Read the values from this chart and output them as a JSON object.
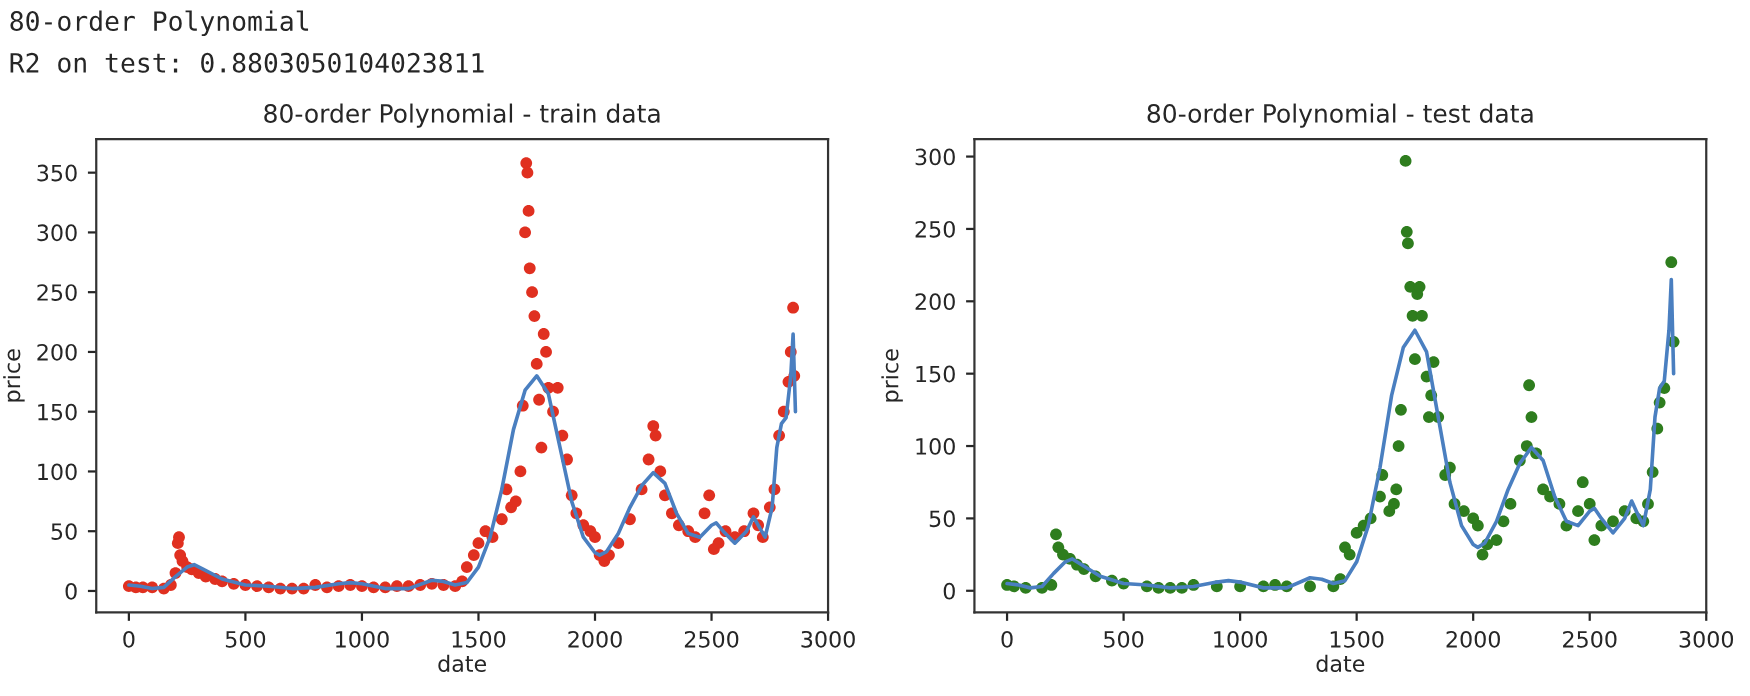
{
  "chart_data": [
    {
      "type": "scatter",
      "title": "80-order Polynomial - train data",
      "xlabel": "date",
      "ylabel": "price",
      "annotations": [
        "80-order Polynomial",
        "R2 on test: 0.8803050104023811"
      ],
      "xlim": [
        -140,
        3000
      ],
      "xticks": [
        0,
        500,
        1000,
        1500,
        2000,
        2500,
        3000
      ],
      "ylim": [
        -18,
        378
      ],
      "yticks": [
        0,
        50,
        100,
        150,
        200,
        250,
        300,
        350
      ],
      "grid": false,
      "legend": false,
      "series": [
        {
          "marker": "circle",
          "color": "#e03020",
          "x": [
            0,
            30,
            60,
            100,
            150,
            180,
            200,
            210,
            215,
            220,
            230,
            250,
            270,
            300,
            330,
            370,
            400,
            450,
            500,
            550,
            600,
            650,
            700,
            750,
            800,
            850,
            900,
            950,
            1000,
            1050,
            1100,
            1150,
            1200,
            1250,
            1300,
            1350,
            1400,
            1430,
            1450,
            1480,
            1500,
            1530,
            1560,
            1600,
            1620,
            1640,
            1660,
            1680,
            1690,
            1700,
            1705,
            1710,
            1715,
            1720,
            1730,
            1740,
            1750,
            1760,
            1770,
            1780,
            1790,
            1800,
            1820,
            1840,
            1860,
            1880,
            1900,
            1920,
            1950,
            1980,
            2000,
            2020,
            2040,
            2060,
            2100,
            2150,
            2200,
            2230,
            2250,
            2260,
            2280,
            2300,
            2330,
            2360,
            2400,
            2430,
            2470,
            2490,
            2510,
            2530,
            2560,
            2600,
            2640,
            2680,
            2700,
            2720,
            2750,
            2770,
            2790,
            2810,
            2830,
            2840,
            2850,
            2855
          ],
          "values": [
            4,
            3,
            3,
            3,
            2,
            5,
            15,
            40,
            45,
            30,
            25,
            20,
            18,
            15,
            12,
            10,
            8,
            6,
            5,
            4,
            3,
            2,
            2,
            2,
            5,
            3,
            4,
            5,
            4,
            3,
            3,
            4,
            4,
            5,
            6,
            5,
            4,
            8,
            20,
            30,
            40,
            50,
            45,
            60,
            85,
            70,
            75,
            100,
            155,
            300,
            358,
            350,
            318,
            270,
            250,
            230,
            190,
            160,
            120,
            215,
            200,
            170,
            150,
            170,
            130,
            110,
            80,
            65,
            55,
            50,
            45,
            30,
            25,
            30,
            40,
            60,
            85,
            110,
            138,
            130,
            100,
            80,
            65,
            55,
            50,
            45,
            65,
            80,
            35,
            40,
            50,
            45,
            50,
            65,
            55,
            45,
            70,
            85,
            130,
            150,
            175,
            200,
            237,
            180
          ]
        },
        {
          "type": "line",
          "marker": "none",
          "line_style": "solid",
          "color": "#4a7fc0",
          "x": [
            0,
            50,
            100,
            150,
            200,
            250,
            280,
            320,
            400,
            500,
            600,
            700,
            800,
            900,
            950,
            1000,
            1100,
            1200,
            1300,
            1350,
            1400,
            1450,
            1500,
            1550,
            1600,
            1650,
            1700,
            1750,
            1800,
            1850,
            1900,
            1950,
            2000,
            2020,
            2050,
            2100,
            2150,
            2200,
            2250,
            2300,
            2350,
            2400,
            2450,
            2500,
            2520,
            2550,
            2600,
            2650,
            2680,
            2700,
            2730,
            2760,
            2780,
            2800,
            2820,
            2840,
            2850,
            2860
          ],
          "values": [
            5,
            4,
            2,
            3,
            12,
            20,
            22,
            18,
            10,
            5,
            4,
            2,
            3,
            6,
            7,
            6,
            2,
            2,
            9,
            8,
            5,
            7,
            20,
            45,
            85,
            135,
            168,
            180,
            165,
            120,
            75,
            45,
            32,
            30,
            33,
            48,
            70,
            88,
            99,
            90,
            65,
            48,
            45,
            55,
            57,
            50,
            40,
            50,
            62,
            55,
            45,
            70,
            120,
            140,
            145,
            180,
            215,
            150
          ]
        }
      ]
    },
    {
      "type": "scatter",
      "title": "80-order Polynomial - test data",
      "xlabel": "date",
      "ylabel": "price",
      "xlim": [
        -140,
        3000
      ],
      "xticks": [
        0,
        500,
        1000,
        1500,
        2000,
        2500,
        3000
      ],
      "ylim": [
        -15,
        312
      ],
      "yticks": [
        0,
        50,
        100,
        150,
        200,
        250,
        300
      ],
      "grid": false,
      "legend": false,
      "series": [
        {
          "marker": "circle",
          "color": "#2e7d1e",
          "x": [
            0,
            30,
            80,
            150,
            190,
            210,
            220,
            240,
            270,
            300,
            330,
            380,
            450,
            500,
            600,
            650,
            700,
            750,
            800,
            900,
            1000,
            1100,
            1150,
            1200,
            1300,
            1400,
            1430,
            1450,
            1470,
            1500,
            1530,
            1560,
            1600,
            1610,
            1640,
            1660,
            1670,
            1680,
            1690,
            1710,
            1715,
            1720,
            1730,
            1740,
            1750,
            1760,
            1770,
            1780,
            1800,
            1810,
            1820,
            1830,
            1850,
            1880,
            1900,
            1920,
            1960,
            2000,
            2020,
            2040,
            2060,
            2100,
            2130,
            2160,
            2200,
            2230,
            2240,
            2250,
            2270,
            2300,
            2330,
            2370,
            2400,
            2450,
            2470,
            2500,
            2520,
            2550,
            2600,
            2650,
            2700,
            2730,
            2750,
            2770,
            2790,
            2800,
            2820,
            2850,
            2860
          ],
          "values": [
            4,
            3,
            2,
            2,
            4,
            39,
            30,
            25,
            22,
            18,
            15,
            10,
            7,
            5,
            3,
            2,
            2,
            2,
            4,
            3,
            3,
            3,
            4,
            3,
            3,
            3,
            8,
            30,
            25,
            40,
            45,
            50,
            65,
            80,
            55,
            60,
            70,
            100,
            125,
            297,
            248,
            240,
            210,
            190,
            160,
            205,
            210,
            190,
            148,
            120,
            135,
            158,
            120,
            80,
            85,
            60,
            55,
            50,
            45,
            25,
            32,
            35,
            48,
            60,
            90,
            100,
            142,
            120,
            95,
            70,
            65,
            60,
            45,
            55,
            75,
            60,
            35,
            45,
            48,
            55,
            50,
            48,
            60,
            82,
            112,
            130,
            140,
            227,
            172
          ]
        },
        {
          "type": "line",
          "marker": "none",
          "line_style": "solid",
          "color": "#4a7fc0",
          "x": [
            0,
            50,
            100,
            150,
            200,
            250,
            280,
            320,
            400,
            500,
            600,
            700,
            800,
            900,
            950,
            1000,
            1100,
            1200,
            1300,
            1350,
            1400,
            1450,
            1500,
            1550,
            1600,
            1650,
            1700,
            1750,
            1800,
            1850,
            1900,
            1950,
            2000,
            2020,
            2050,
            2100,
            2150,
            2200,
            2250,
            2300,
            2350,
            2400,
            2450,
            2500,
            2520,
            2550,
            2600,
            2650,
            2680,
            2700,
            2730,
            2760,
            2780,
            2800,
            2820,
            2840,
            2850,
            2860
          ],
          "values": [
            5,
            4,
            2,
            3,
            12,
            20,
            22,
            18,
            10,
            5,
            4,
            2,
            3,
            6,
            7,
            6,
            2,
            2,
            9,
            8,
            5,
            7,
            20,
            45,
            85,
            135,
            168,
            180,
            165,
            120,
            75,
            45,
            32,
            30,
            33,
            48,
            70,
            88,
            99,
            90,
            65,
            48,
            45,
            55,
            57,
            50,
            40,
            50,
            62,
            55,
            45,
            70,
            120,
            140,
            145,
            180,
            215,
            150
          ]
        }
      ]
    }
  ]
}
